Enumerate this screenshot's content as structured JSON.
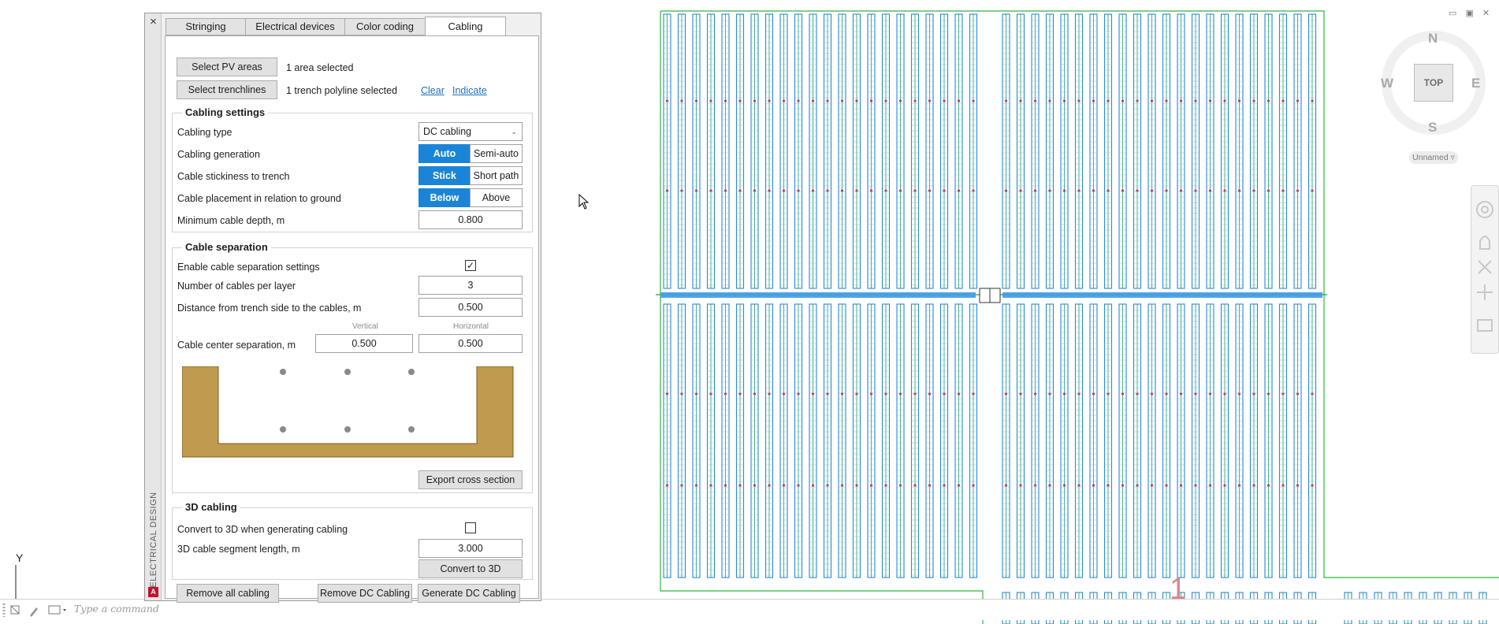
{
  "panel": {
    "close_glyph": "×",
    "side_label": "ELECTRICAL DESIGN",
    "badge": "A",
    "tabs": [
      {
        "label": "Stringing"
      },
      {
        "label": "Electrical devices"
      },
      {
        "label": "Color coding"
      },
      {
        "label": "Cabling",
        "active": true
      }
    ],
    "select_pv_label": "Select PV areas",
    "pv_status": "1 area selected",
    "select_trench_label": "Select trenchlines",
    "trench_status": "1 trench polyline selected",
    "clear_link": "Clear",
    "indicate_link": "Indicate",
    "cabling_settings": {
      "title": "Cabling settings",
      "type_label": "Cabling type",
      "type_value": "DC cabling",
      "generation_label": "Cabling generation",
      "generation_options": [
        "Auto",
        "Semi-auto"
      ],
      "generation_selected": "Auto",
      "stickiness_label": "Cable stickiness to trench",
      "stickiness_options": [
        "Stick",
        "Short path"
      ],
      "stickiness_selected": "Stick",
      "placement_label": "Cable placement in relation to ground",
      "placement_options": [
        "Below",
        "Above"
      ],
      "placement_selected": "Below",
      "depth_label": "Minimum cable depth, m",
      "depth_value": "0.800"
    },
    "cable_separation": {
      "title": "Cable separation",
      "enable_label": "Enable cable separation settings",
      "enable_checked": true,
      "check_glyph": "✓",
      "per_layer_label": "Number of cables per layer",
      "per_layer_value": "3",
      "distance_label": "Distance from trench side to the cables, m",
      "distance_value": "0.500",
      "vertical_head": "Vertical",
      "horizontal_head": "Horizontal",
      "center_sep_label": "Cable center separation, m",
      "vertical_value": "0.500",
      "horizontal_value": "0.500",
      "export_label": "Export cross section"
    },
    "cabling_3d": {
      "title": "3D cabling",
      "convert_label": "Convert to 3D when generating cabling",
      "convert_checked": false,
      "segment_label": "3D cable segment length, m",
      "segment_value": "3.000",
      "convert_button": "Convert to 3D"
    },
    "remove_all_label": "Remove all cabling",
    "remove_dc_label": "Remove DC Cabling",
    "generate_dc_label": "Generate DC Cabling"
  },
  "viewcube": {
    "north": "N",
    "south": "S",
    "east": "E",
    "west": "W",
    "top": "TOP",
    "ucs_label": "Unnamed ▿"
  },
  "window_controls": "▭ ▣ ✕",
  "command": {
    "placeholder": "Type a command"
  },
  "axis": {
    "y": "Y"
  },
  "drawing_label": "1",
  "colors": {
    "accent": "#1a85d6",
    "trench_fill": "#c09a4f",
    "boundary": "#2db83d",
    "panel_blue": "#2a87d8"
  }
}
